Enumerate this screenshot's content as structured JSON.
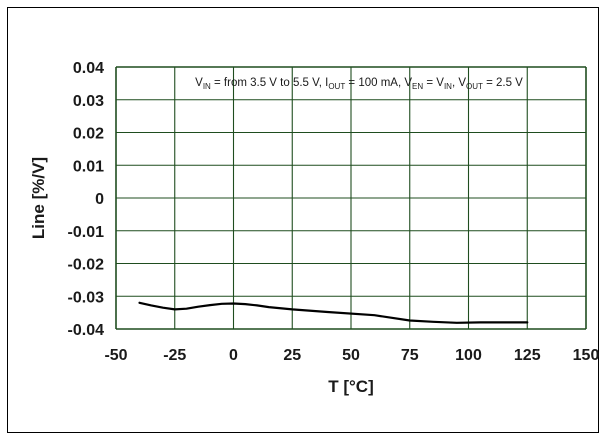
{
  "chart_data": {
    "type": "line",
    "title": "",
    "xlabel": "T [°C]",
    "ylabel": "Line [%/V]",
    "xlim": [
      -50,
      150
    ],
    "ylim": [
      -0.04,
      0.04
    ],
    "x_ticks": [
      "-50",
      "-25",
      "0",
      "25",
      "50",
      "75",
      "100",
      "125",
      "150"
    ],
    "y_ticks": [
      "0.04",
      "0.03",
      "0.02",
      "0.01",
      "0",
      "-0.01",
      "-0.02",
      "-0.03",
      "-0.04"
    ],
    "grid": true,
    "annotation": {
      "parts": [
        {
          "t": "V",
          "sub": false
        },
        {
          "t": "IN",
          "sub": true
        },
        {
          "t": " = from 3.5 V to 5.5 V, I",
          "sub": false
        },
        {
          "t": "OUT",
          "sub": true
        },
        {
          "t": " = 100 mA, V",
          "sub": false
        },
        {
          "t": "EN",
          "sub": true
        },
        {
          "t": " = V",
          "sub": false
        },
        {
          "t": "IN",
          "sub": true
        },
        {
          "t": ", V",
          "sub": false
        },
        {
          "t": "OUT",
          "sub": true
        },
        {
          "t": " = 2.5 V",
          "sub": false
        }
      ]
    },
    "series": [
      {
        "color": "#000000",
        "x": [
          -40,
          -35,
          -30,
          -25,
          -20,
          -15,
          -10,
          -5,
          0,
          5,
          10,
          15,
          25,
          40,
          60,
          75,
          85,
          95,
          105,
          115,
          125
        ],
        "y": [
          -0.032,
          -0.0328,
          -0.0335,
          -0.034,
          -0.0338,
          -0.0332,
          -0.0327,
          -0.0323,
          -0.0322,
          -0.0324,
          -0.0328,
          -0.0333,
          -0.034,
          -0.0348,
          -0.0358,
          -0.0374,
          -0.0378,
          -0.0381,
          -0.038,
          -0.038,
          -0.038
        ]
      }
    ],
    "colors": {
      "grid": "#1f4d1f",
      "frame": "#1f4d1f",
      "text": "#1a1a1a"
    }
  }
}
